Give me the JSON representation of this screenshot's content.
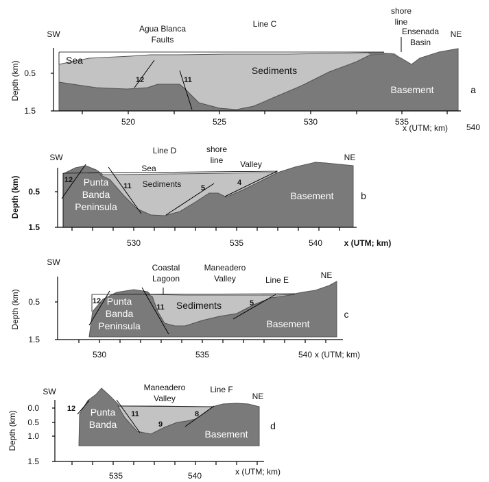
{
  "panels": {
    "a": {
      "id": "a",
      "line": "Line C",
      "sw": "SW",
      "ne": "NE",
      "faults_label_1": "Agua Blanca",
      "faults_label_2": "Faults",
      "shore_1": "shore",
      "shore_2": "line",
      "basin_1": "Ensenada",
      "basin_2": "Basin",
      "sea": "Sea",
      "sediments": "Sediments",
      "basement": "Basement",
      "faults": [
        "12",
        "11"
      ],
      "ylabel": "Depth (km)",
      "yticks": [
        "0.5",
        "1.5"
      ],
      "xticks": [
        "520",
        "525",
        "530",
        "535",
        "540"
      ],
      "xlabel": "x (UTM; km)"
    },
    "b": {
      "id": "b",
      "line": "Line D",
      "sw": "SW",
      "ne": "NE",
      "sea": "Sea",
      "sediments": "Sediments",
      "basement": "Basement",
      "shore_1": "shore",
      "shore_2": "line",
      "valley": "Valley",
      "pen_1": "Punta",
      "pen_2": "Banda",
      "pen_3": "Peninsula",
      "faults": [
        "12",
        "11",
        "5",
        "4"
      ],
      "ylabel": "Depth (km)",
      "yticks": [
        "0.5",
        "1.5"
      ],
      "xticks": [
        "530",
        "535",
        "540"
      ],
      "xlabel": "x (UTM; km)"
    },
    "c": {
      "id": "c",
      "line": "Line E",
      "sw": "SW",
      "ne": "NE",
      "lagoon_1": "Coastal",
      "lagoon_2": "Lagoon",
      "valley_1": "Maneadero",
      "valley_2": "Valley",
      "sediments": "Sediments",
      "basement": "Basement",
      "pen_1": "Punta",
      "pen_2": "Banda",
      "pen_3": "Peninsula",
      "faults": [
        "12",
        "11",
        "5"
      ],
      "ylabel": "Depth (km)",
      "yticks": [
        "0.5",
        "1.5"
      ],
      "xticks": [
        "530",
        "535",
        "540"
      ],
      "xlabel": "x (UTM; km)"
    },
    "d": {
      "id": "d",
      "line": "Line F",
      "sw": "SW",
      "ne": "NE",
      "valley_1": "Maneadero",
      "valley_2": "Valley",
      "basement": "Basement",
      "pen_1": "Punta",
      "pen_2": "Banda",
      "faults": [
        "12",
        "11",
        "9",
        "8"
      ],
      "ylabel": "Depth (km)",
      "yticks": [
        "0.0",
        "0.5",
        "1.0",
        "1.5"
      ],
      "xticks": [
        "535",
        "540"
      ],
      "xlabel": "x (UTM; km)"
    }
  },
  "colors": {
    "basement": "#7a7a7a",
    "sediments": "#c3c3c3",
    "background": "#ffffff"
  }
}
